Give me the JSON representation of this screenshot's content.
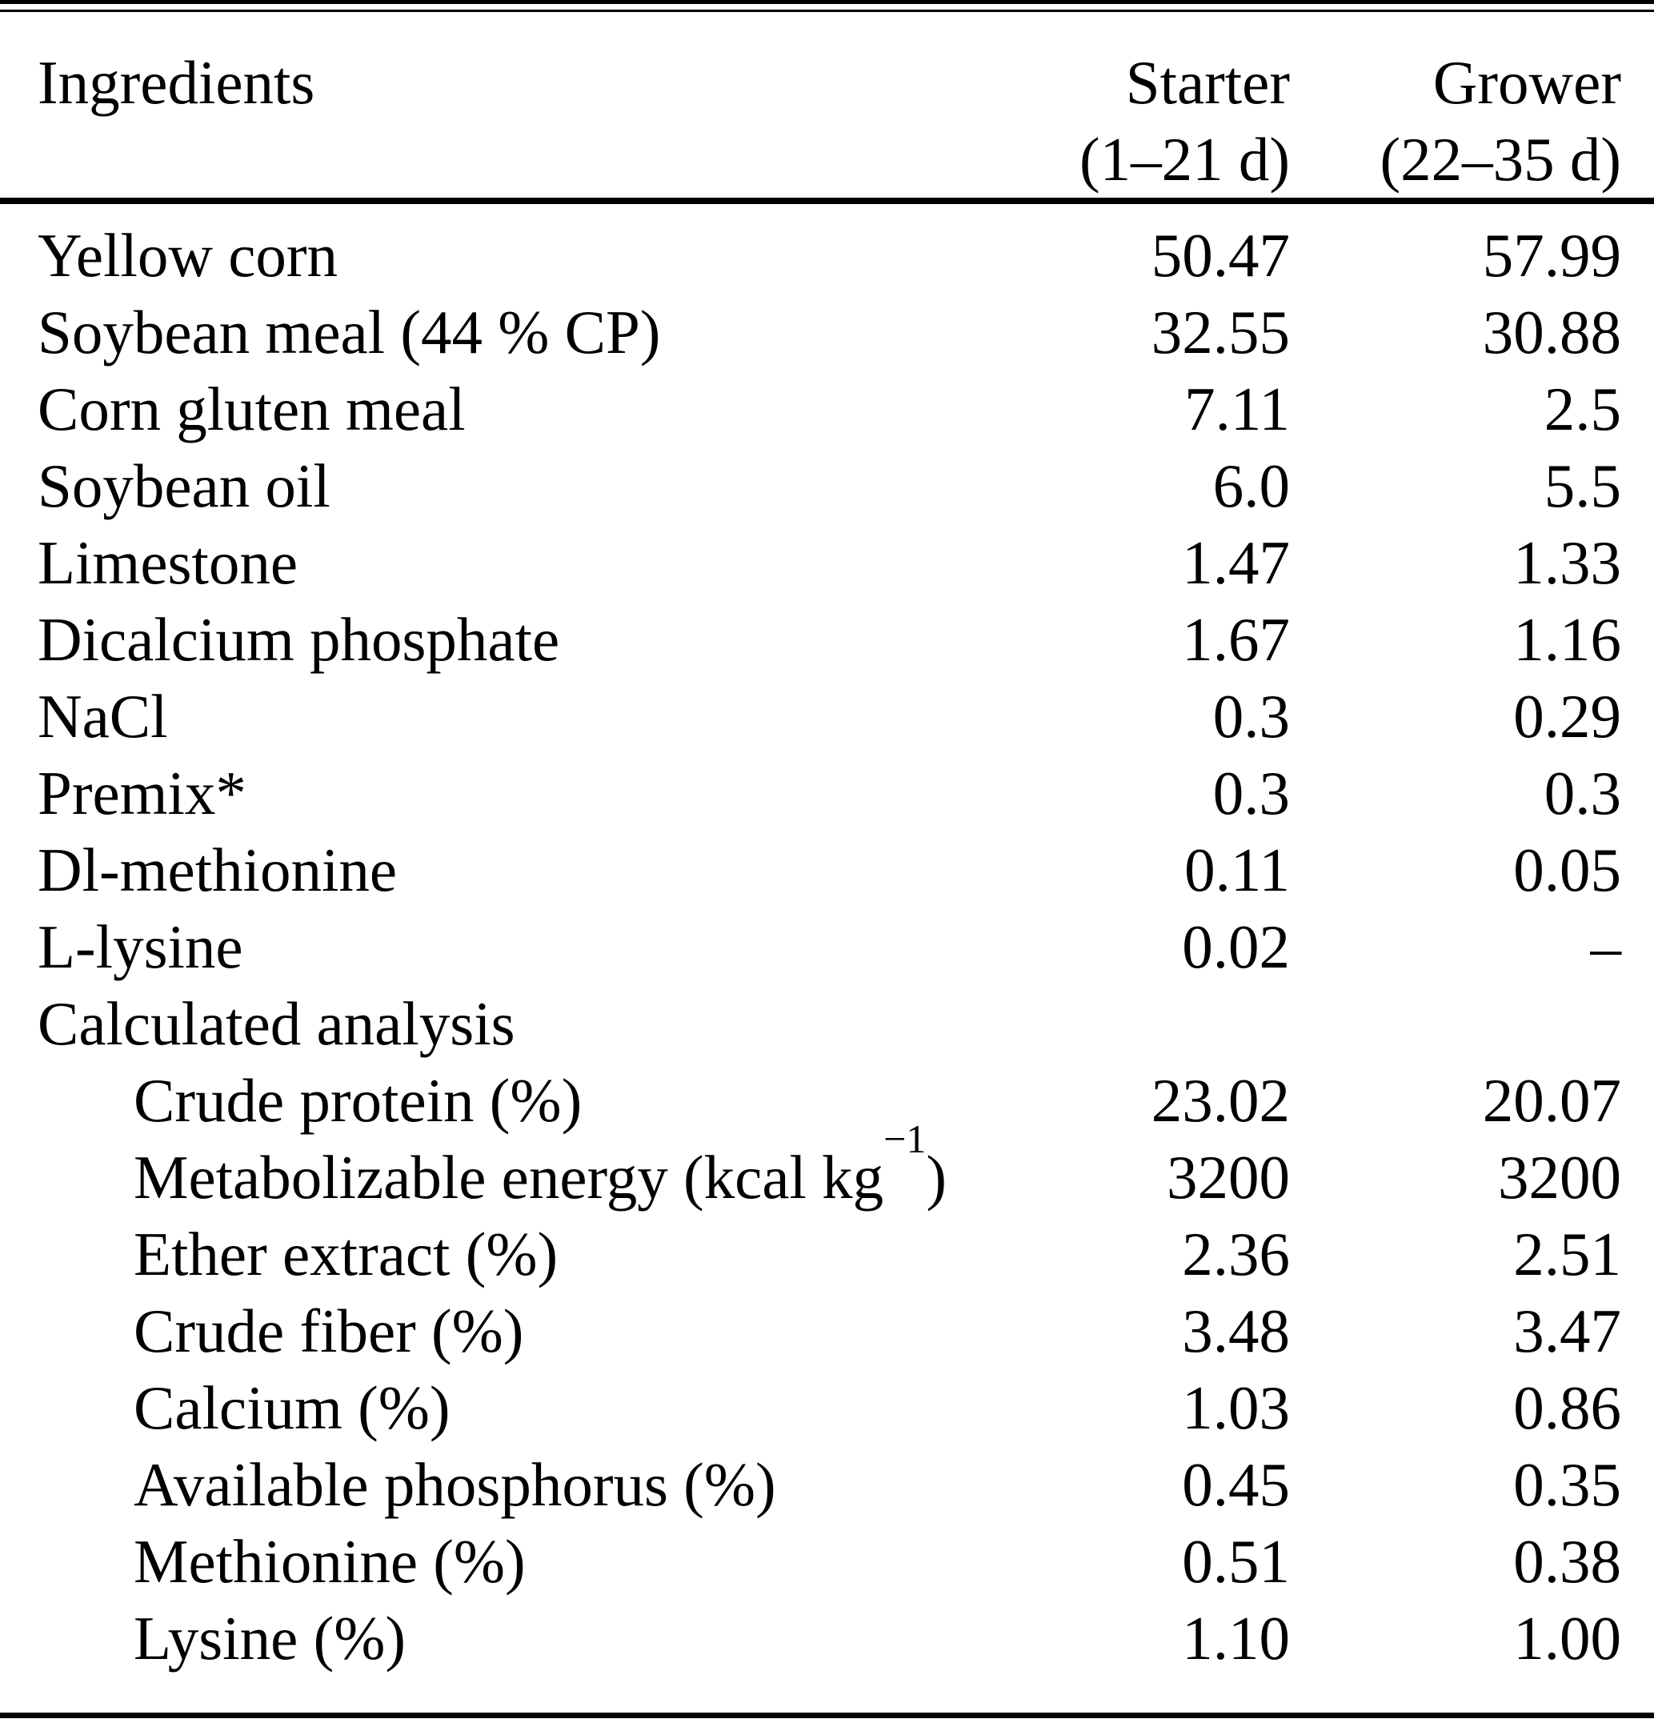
{
  "style": {
    "ink_color": "#000000",
    "background_color": "#ffffff"
  },
  "table": {
    "header": {
      "ingredients": "Ingredients",
      "starter_line1": "Starter",
      "starter_line2": "(1–21 d)",
      "grower_line1": "Grower",
      "grower_line2": "(22–35 d)"
    },
    "rows": [
      {
        "label": "Yellow corn",
        "starter": "50.47",
        "grower": "57.99"
      },
      {
        "label": "Soybean meal (44 % CP)",
        "starter": "32.55",
        "grower": "30.88"
      },
      {
        "label": "Corn gluten meal",
        "starter": "7.11",
        "grower": "2.5"
      },
      {
        "label": "Soybean oil",
        "starter": "6.0",
        "grower": "5.5"
      },
      {
        "label": "Limestone",
        "starter": "1.47",
        "grower": "1.33"
      },
      {
        "label": "Dicalcium phosphate",
        "starter": "1.67",
        "grower": "1.16"
      },
      {
        "label": "NaCl",
        "starter": "0.3",
        "grower": "0.29"
      },
      {
        "label": "Premix*",
        "starter": "0.3",
        "grower": "0.3"
      },
      {
        "label": "Dl-methionine",
        "starter": "0.11",
        "grower": "0.05"
      },
      {
        "label": "L-lysine",
        "starter": "0.02",
        "grower": "–"
      },
      {
        "label": "Calculated analysis",
        "starter": "",
        "grower": ""
      },
      {
        "label": "Crude protein (%)",
        "starter": "23.02",
        "grower": "20.07"
      },
      {
        "label": "Metabolizable energy (kcal kg",
        "label_sup": "−1",
        "label_post": ")",
        "starter": "3200",
        "grower": "3200"
      },
      {
        "label": "Ether extract (%)",
        "starter": "2.36",
        "grower": "2.51"
      },
      {
        "label": "Crude fiber (%)",
        "starter": "3.48",
        "grower": "3.47"
      },
      {
        "label": "Calcium (%)",
        "starter": "1.03",
        "grower": "0.86"
      },
      {
        "label": "Available phosphorus (%)",
        "starter": "0.45",
        "grower": "0.35"
      },
      {
        "label": "Methionine (%)",
        "starter": "0.51",
        "grower": "0.38"
      },
      {
        "label": "Lysine (%)",
        "starter": "1.10",
        "grower": "1.00"
      }
    ]
  }
}
